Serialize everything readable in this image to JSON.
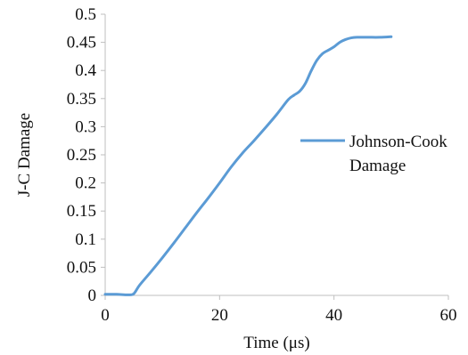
{
  "chart_data": {
    "type": "line",
    "xlabel": "Time (μs)",
    "ylabel": "J-C Damage",
    "xlim": [
      0,
      60
    ],
    "ylim": [
      0,
      0.5
    ],
    "x_ticks": [
      "0",
      "20",
      "40",
      "60"
    ],
    "y_ticks": [
      "0",
      "0.05",
      "0.1",
      "0.15",
      "0.2",
      "0.25",
      "0.3",
      "0.35",
      "0.4",
      "0.45",
      "0.5"
    ],
    "grid": false,
    "legend": {
      "placement": "right",
      "label_lines": [
        "Johnson-Cook",
        "Damage"
      ]
    },
    "series": [
      {
        "name": "Johnson-Cook Damage",
        "color": "#5b9bd5",
        "x": [
          0,
          2,
          4,
          5,
          6,
          8,
          10,
          12,
          14,
          16,
          18,
          20,
          22,
          24,
          26,
          28,
          30,
          32,
          33,
          34,
          35,
          36,
          37,
          38,
          39,
          40,
          41,
          42,
          43,
          44,
          46,
          48,
          50
        ],
        "y": [
          0.002,
          0.002,
          0.001,
          0.003,
          0.018,
          0.042,
          0.067,
          0.093,
          0.12,
          0.147,
          0.173,
          0.2,
          0.228,
          0.253,
          0.275,
          0.298,
          0.322,
          0.348,
          0.356,
          0.363,
          0.377,
          0.399,
          0.418,
          0.43,
          0.436,
          0.442,
          0.45,
          0.455,
          0.458,
          0.459,
          0.459,
          0.459,
          0.46
        ]
      }
    ]
  }
}
